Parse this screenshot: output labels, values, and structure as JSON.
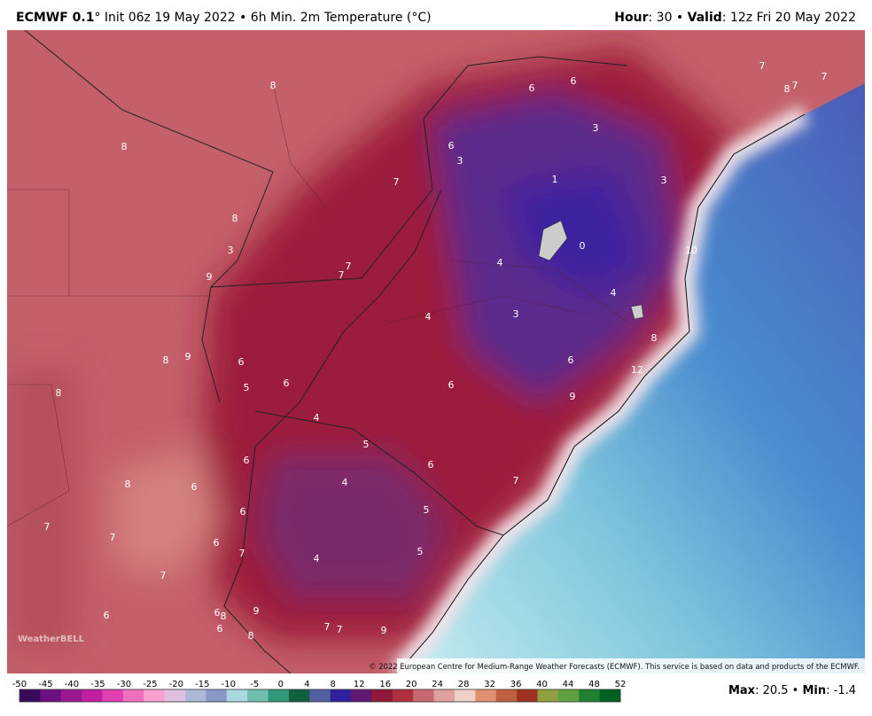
{
  "header": {
    "model": "ECMWF 0.1",
    "description": "° Init 06z 19 May 2022 • 6h Min. 2m Temperature (°C)",
    "hour_label": "Hour",
    "hour_value": ": 30 • ",
    "valid_label": "Valid",
    "valid_value": ": 12z Fri 20 May 2022"
  },
  "map": {
    "labels": [
      "8",
      "8",
      "6",
      "6",
      "3",
      "6",
      "3",
      "7",
      "1",
      "3",
      "8",
      "3",
      "9",
      "7",
      "7",
      "4",
      "0",
      "10",
      "4",
      "4",
      "3",
      "8",
      "8",
      "9",
      "6",
      "6",
      "5",
      "6",
      "6",
      "8",
      "12",
      "9",
      "4",
      "5",
      "6",
      "6",
      "4",
      "8",
      "6",
      "7",
      "6",
      "5",
      "7",
      "7",
      "6",
      "7",
      "5",
      "4",
      "7",
      "6",
      "6",
      "8",
      "9",
      "6",
      "8",
      "7",
      "7",
      "9",
      "7",
      "8",
      "7",
      "7"
    ],
    "logo": "WeatherBELL",
    "credit": "© 2022 European Centre for Medium-Range Weather Forecasts (ECMWF). This service is based on data and products of the ECMWF."
  },
  "colorbar": {
    "ticks": [
      "-50",
      "-45",
      "-40",
      "-35",
      "-30",
      "-25",
      "-20",
      "-15",
      "-10",
      "-5",
      "0",
      "4",
      "8",
      "12",
      "16",
      "20",
      "24",
      "28",
      "32",
      "36",
      "40",
      "44",
      "48",
      "52"
    ]
  },
  "footer": {
    "max_label": "Max",
    "max_value": ": 20.5 • ",
    "min_label": "Min",
    "min_value": ": -1.4"
  }
}
